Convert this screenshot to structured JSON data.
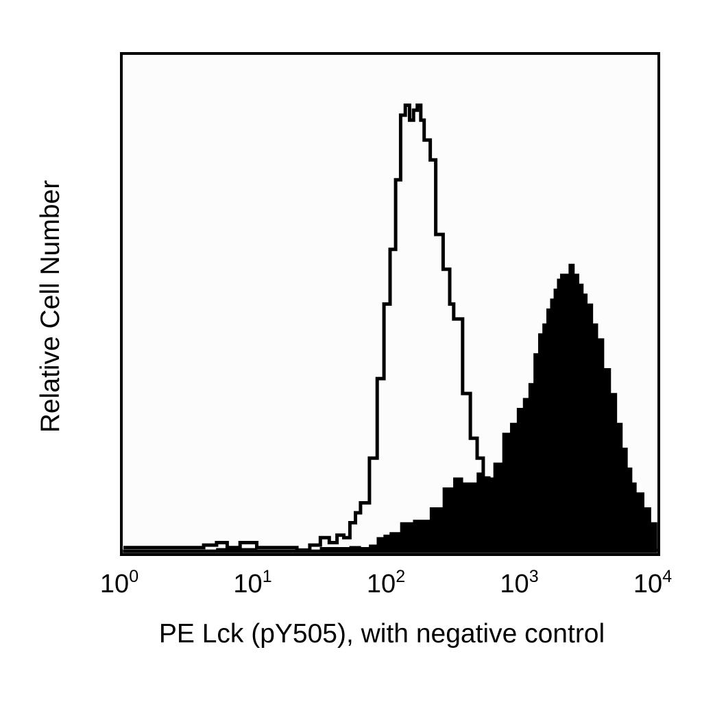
{
  "chart_data": {
    "type": "area",
    "xscale": "log",
    "xlim": [
      1,
      10000
    ],
    "ylim": [
      0,
      1
    ],
    "grid": false,
    "legend": "none",
    "xlabel": "PE Lck (pY505), with negative control",
    "ylabel": "Relative Cell Number",
    "x_ticks": [
      {
        "base": "10",
        "exp": "0"
      },
      {
        "base": "10",
        "exp": "1"
      },
      {
        "base": "10",
        "exp": "2"
      },
      {
        "base": "10",
        "exp": "3"
      },
      {
        "base": "10",
        "exp": "4"
      }
    ],
    "series": [
      {
        "style": "outline",
        "color": "#000000",
        "points": [
          [
            1.0,
            0.01
          ],
          [
            2.0,
            0.01
          ],
          [
            4.0,
            0.015
          ],
          [
            5.0,
            0.02
          ],
          [
            6.0,
            0.01
          ],
          [
            7.5,
            0.02
          ],
          [
            10,
            0.01
          ],
          [
            15,
            0.01
          ],
          [
            20,
            0.005
          ],
          [
            25,
            0.015
          ],
          [
            30,
            0.03
          ],
          [
            35,
            0.02
          ],
          [
            40,
            0.035
          ],
          [
            45,
            0.03
          ],
          [
            50,
            0.06
          ],
          [
            55,
            0.08
          ],
          [
            60,
            0.1
          ],
          [
            70,
            0.19
          ],
          [
            80,
            0.35
          ],
          [
            90,
            0.5
          ],
          [
            100,
            0.61
          ],
          [
            110,
            0.75
          ],
          [
            120,
            0.88
          ],
          [
            130,
            0.9
          ],
          [
            140,
            0.87
          ],
          [
            150,
            0.89
          ],
          [
            160,
            0.9
          ],
          [
            170,
            0.87
          ],
          [
            180,
            0.83
          ],
          [
            200,
            0.79
          ],
          [
            220,
            0.64
          ],
          [
            250,
            0.57
          ],
          [
            280,
            0.5
          ],
          [
            300,
            0.47
          ],
          [
            350,
            0.32
          ],
          [
            400,
            0.23
          ],
          [
            450,
            0.19
          ],
          [
            500,
            0.15
          ],
          [
            550,
            0.12
          ],
          [
            600,
            0.09
          ],
          [
            700,
            0.06
          ],
          [
            800,
            0.045
          ],
          [
            900,
            0.035
          ],
          [
            1000,
            0.025
          ],
          [
            1500,
            0.015
          ],
          [
            2000,
            0.01
          ],
          [
            3000,
            0.006
          ],
          [
            5000,
            0.004
          ],
          [
            10000,
            0.002
          ]
        ]
      },
      {
        "style": "filled",
        "color": "#000000",
        "points": [
          [
            1.0,
            0.005
          ],
          [
            5,
            0.008
          ],
          [
            10,
            0.005
          ],
          [
            20,
            0.005
          ],
          [
            30,
            0.01
          ],
          [
            40,
            0.01
          ],
          [
            50,
            0.012
          ],
          [
            60,
            0.01
          ],
          [
            70,
            0.015
          ],
          [
            80,
            0.03
          ],
          [
            90,
            0.035
          ],
          [
            100,
            0.04
          ],
          [
            120,
            0.06
          ],
          [
            150,
            0.065
          ],
          [
            200,
            0.09
          ],
          [
            250,
            0.13
          ],
          [
            300,
            0.15
          ],
          [
            350,
            0.14
          ],
          [
            400,
            0.14
          ],
          [
            450,
            0.16
          ],
          [
            500,
            0.15
          ],
          [
            600,
            0.18
          ],
          [
            700,
            0.24
          ],
          [
            800,
            0.26
          ],
          [
            900,
            0.29
          ],
          [
            1000,
            0.31
          ],
          [
            1100,
            0.34
          ],
          [
            1200,
            0.4
          ],
          [
            1300,
            0.44
          ],
          [
            1400,
            0.46
          ],
          [
            1500,
            0.49
          ],
          [
            1600,
            0.51
          ],
          [
            1700,
            0.53
          ],
          [
            1800,
            0.55
          ],
          [
            1900,
            0.56
          ],
          [
            2000,
            0.56
          ],
          [
            2200,
            0.58
          ],
          [
            2400,
            0.56
          ],
          [
            2600,
            0.54
          ],
          [
            2800,
            0.52
          ],
          [
            3000,
            0.5
          ],
          [
            3300,
            0.46
          ],
          [
            3600,
            0.43
          ],
          [
            4000,
            0.37
          ],
          [
            4500,
            0.32
          ],
          [
            5000,
            0.26
          ],
          [
            5500,
            0.21
          ],
          [
            6000,
            0.17
          ],
          [
            6500,
            0.14
          ],
          [
            7000,
            0.12
          ],
          [
            8000,
            0.09
          ],
          [
            9000,
            0.06
          ],
          [
            10000,
            0.04
          ]
        ]
      }
    ]
  }
}
